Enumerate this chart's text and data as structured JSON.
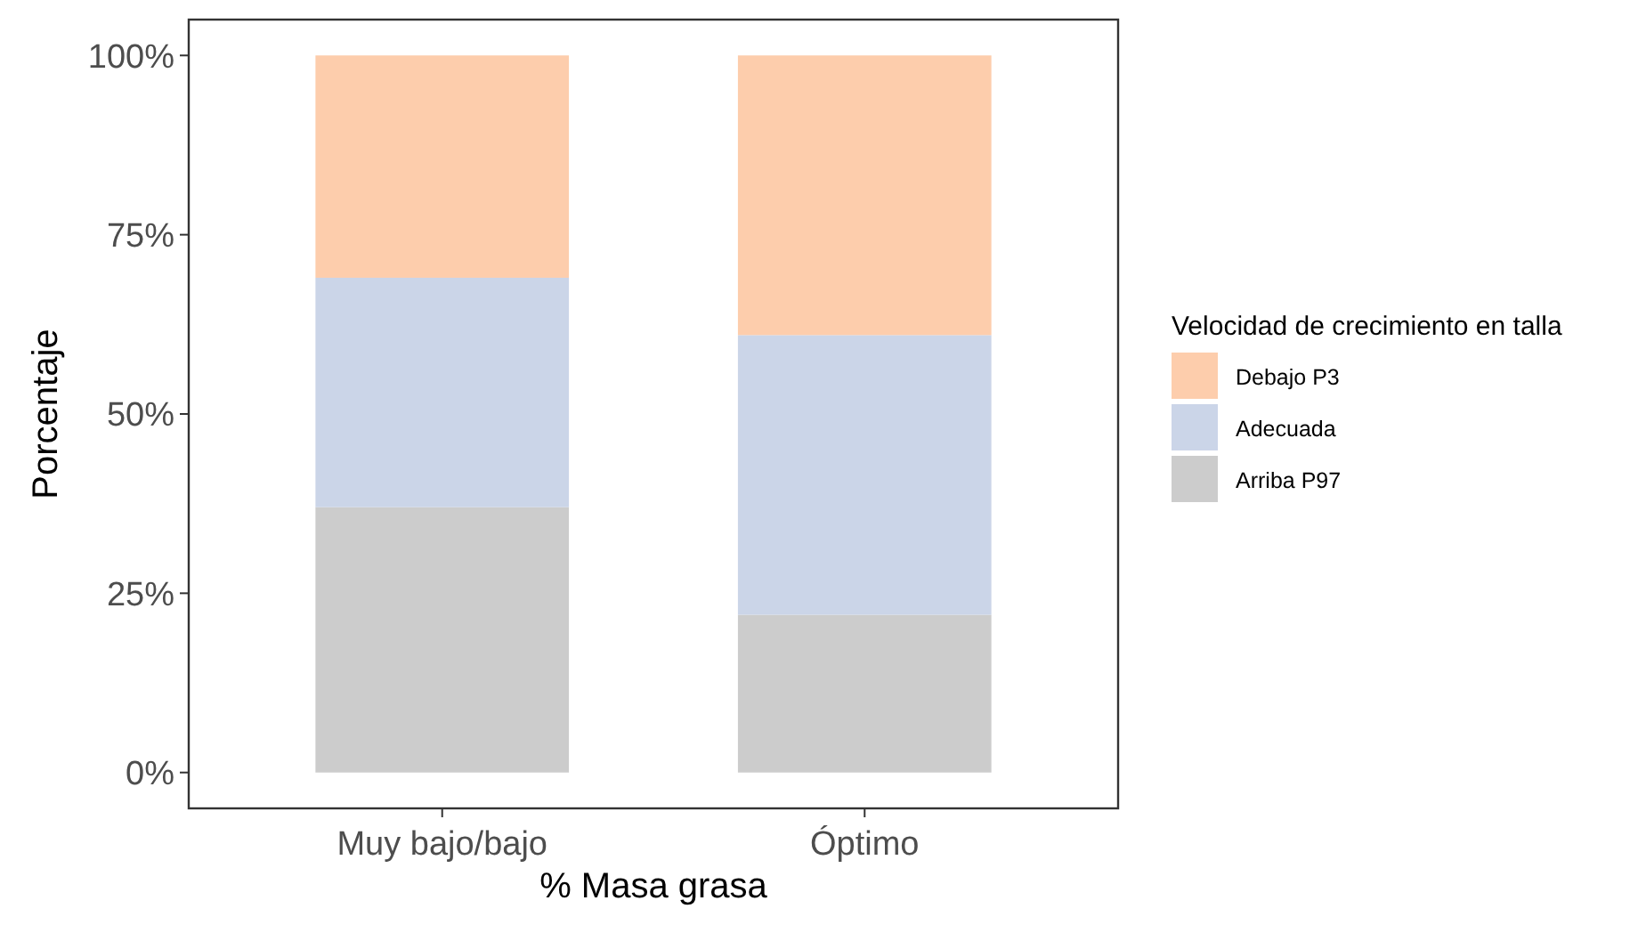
{
  "chart_data": {
    "type": "bar",
    "stacked": true,
    "xlabel": "% Masa grasa",
    "ylabel": "Porcentaje",
    "legend_title": "Velocidad de crecimiento en talla",
    "legend": "right",
    "grid": false,
    "categories": [
      "Muy bajo/bajo",
      "Óptimo"
    ],
    "ylim": [
      -5,
      105
    ],
    "yticks": [
      {
        "value": 0,
        "label": "0%"
      },
      {
        "value": 25,
        "label": "25%"
      },
      {
        "value": 50,
        "label": "50%"
      },
      {
        "value": 75,
        "label": "75%"
      },
      {
        "value": 100,
        "label": "100%"
      }
    ],
    "series": [
      {
        "name": "Arriba P97",
        "color": "#cccccc",
        "values": [
          37,
          22
        ]
      },
      {
        "name": "Adecuada",
        "color": "#cbd5e8",
        "values": [
          32,
          39
        ]
      },
      {
        "name": "Debajo P3",
        "color": "#fdcdac",
        "values": [
          31,
          39
        ]
      }
    ]
  }
}
